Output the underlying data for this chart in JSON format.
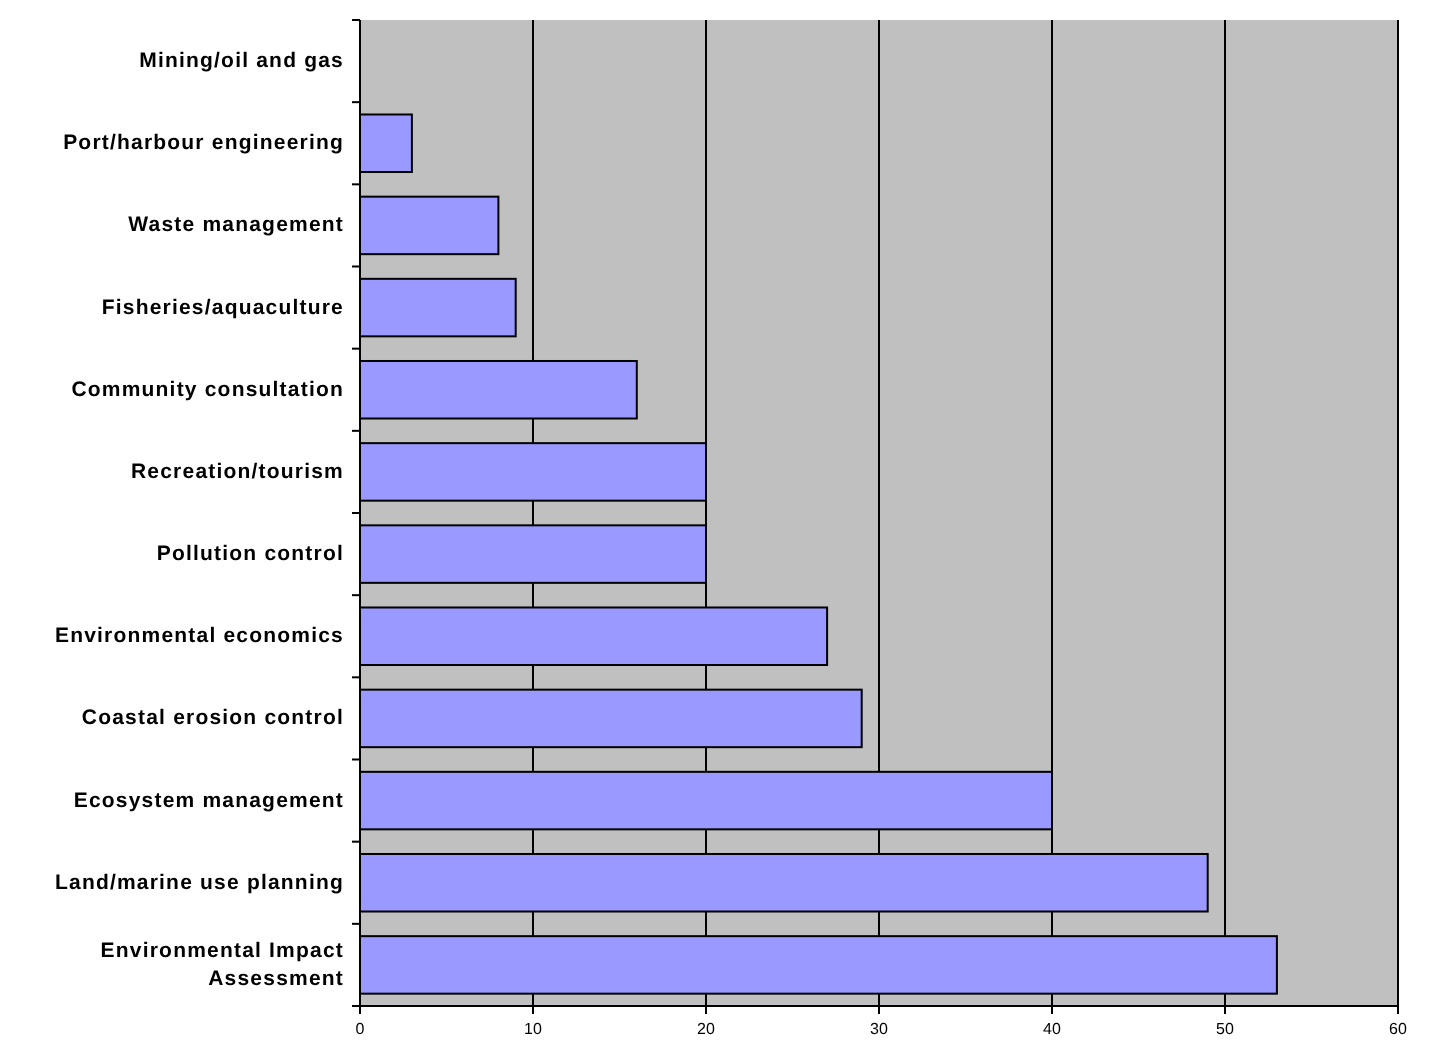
{
  "chart_data": {
    "type": "bar",
    "orientation": "horizontal",
    "categories": [
      "Mining/oil and gas",
      "Port/harbour engineering",
      "Waste management",
      "Fisheries/aquaculture",
      "Community consultation",
      "Recreation/tourism",
      "Pollution control",
      "Environmental economics",
      "Coastal erosion control",
      "Ecosystem management",
      "Land/marine use planning",
      "Environmental Impact Assessment"
    ],
    "values": [
      0,
      3,
      8,
      9,
      16,
      20,
      20,
      27,
      29,
      40,
      49,
      53
    ],
    "color": "#9999ff",
    "xlim": [
      0,
      60
    ],
    "xticks": [
      0,
      10,
      20,
      30,
      40,
      50,
      60
    ],
    "grid": "x"
  }
}
